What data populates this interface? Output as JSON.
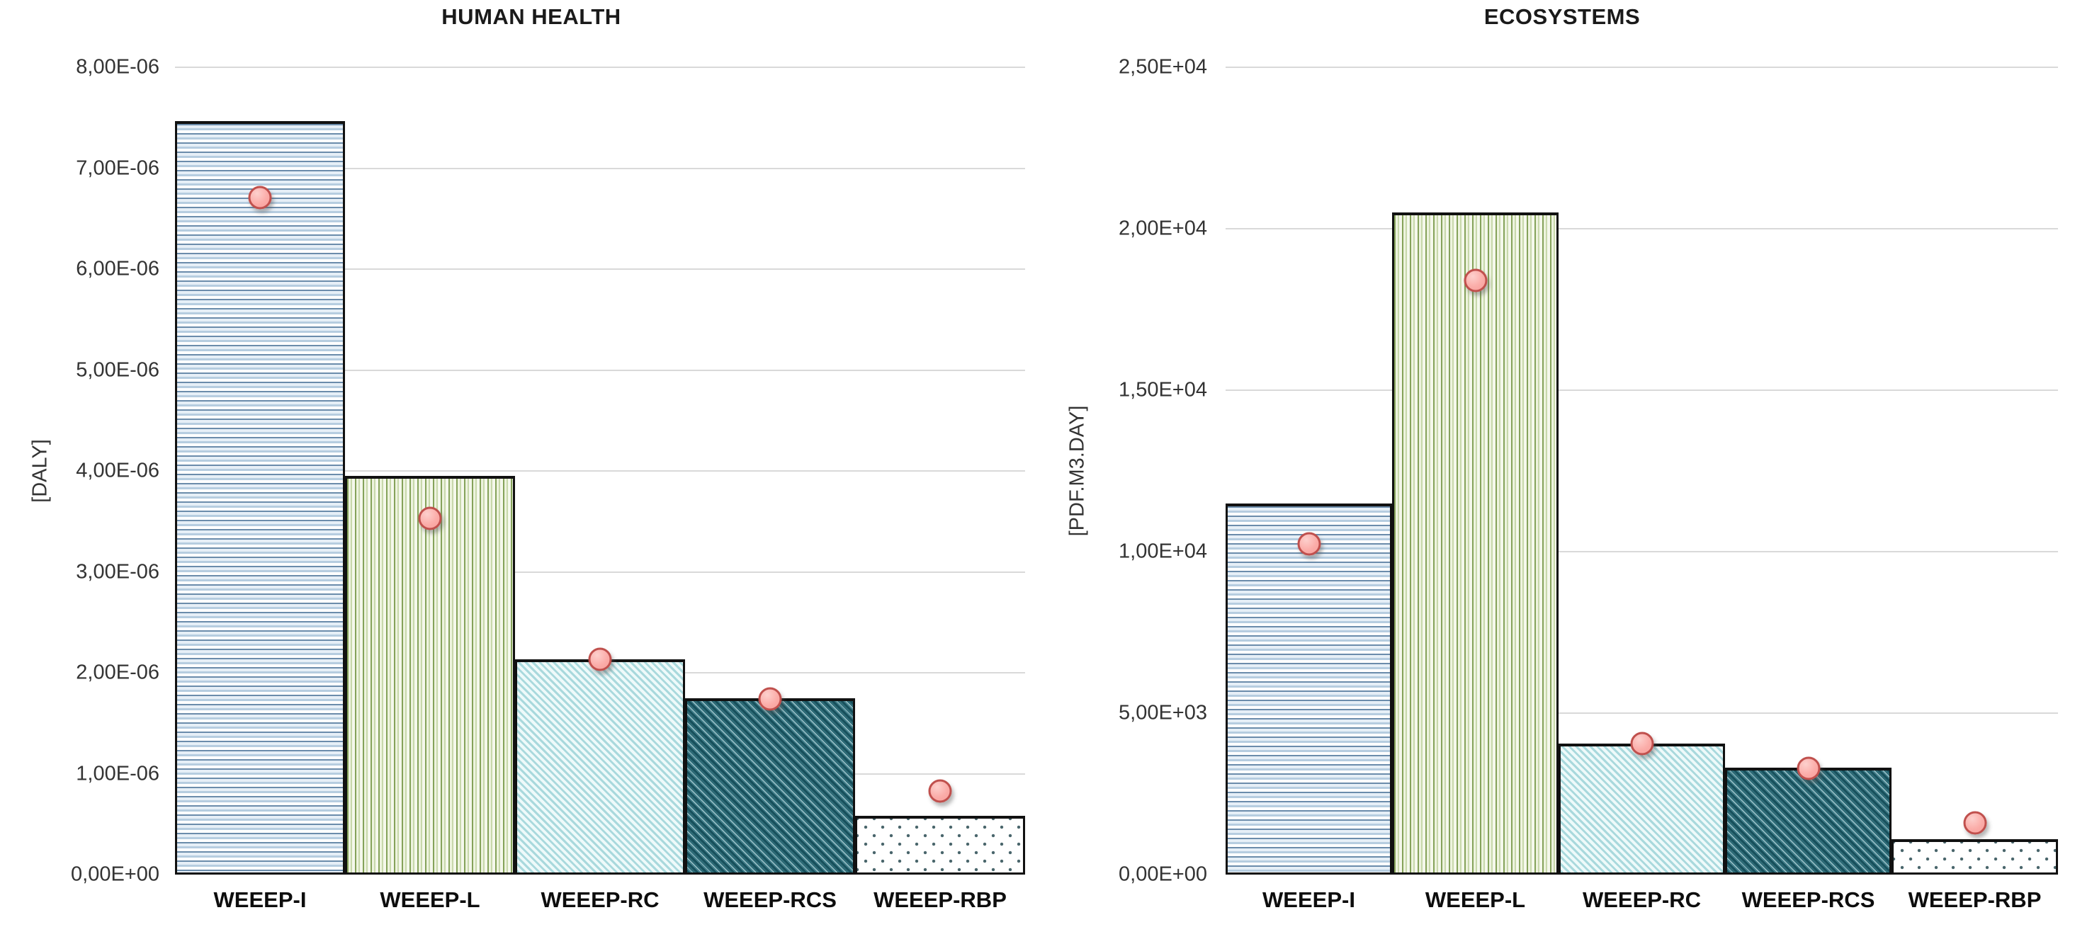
{
  "page": {
    "background": "#ffffff"
  },
  "colors": {
    "gridline": "#d9d9d9",
    "bar_border": "#111111",
    "marker_fill": "#fbada9",
    "marker_border": "#c0504d",
    "title_color": "#1a1a1a",
    "tick_label_color": "#333333",
    "category_label_color": "#0d0d0d"
  },
  "categories": [
    "WEEEP-I",
    "WEEEP-L",
    "WEEEP-RC",
    "WEEEP-RCS",
    "WEEEP-RBP"
  ],
  "bar_patterns": [
    "horizontal-stripes-blue",
    "vertical-stripes-green",
    "diagonal-hatch-light-teal",
    "diagonal-hatch-dark-teal",
    "dotted-white"
  ],
  "chart_data": [
    {
      "type": "bar",
      "title": "HUMAN HEALTH",
      "ylabel": "[DALY]",
      "categories": [
        "WEEEP-I",
        "WEEEP-L",
        "WEEEP-RC",
        "WEEEP-RCS",
        "WEEEP-RBP"
      ],
      "series": [
        {
          "name": "bars",
          "type": "bar",
          "values": [
            7.47e-06,
            3.95e-06,
            2.13e-06,
            1.75e-06,
            5.8e-07
          ]
        },
        {
          "name": "markers",
          "type": "scatter",
          "values": [
            6.71e-06,
            3.53e-06,
            2.13e-06,
            1.74e-06,
            8.3e-07
          ]
        }
      ],
      "ylim": [
        0,
        8e-06
      ],
      "grid": true,
      "legend_position": "none",
      "yticks": [
        {
          "value": 0,
          "label": "0,00E+00"
        },
        {
          "value": 1e-06,
          "label": "1,00E-06"
        },
        {
          "value": 2e-06,
          "label": "2,00E-06"
        },
        {
          "value": 3e-06,
          "label": "3,00E-06"
        },
        {
          "value": 4e-06,
          "label": "4,00E-06"
        },
        {
          "value": 5e-06,
          "label": "5,00E-06"
        },
        {
          "value": 6e-06,
          "label": "6,00E-06"
        },
        {
          "value": 7e-06,
          "label": "7,00E-06"
        },
        {
          "value": 8e-06,
          "label": "8,00E-06"
        }
      ]
    },
    {
      "type": "bar",
      "title": "ECOSYSTEMS",
      "ylabel": "[PDF.M3.DAY]",
      "categories": [
        "WEEEP-I",
        "WEEEP-L",
        "WEEEP-RC",
        "WEEEP-RCS",
        "WEEEP-RBP"
      ],
      "series": [
        {
          "name": "bars",
          "type": "bar",
          "values": [
            11500,
            20500,
            4060,
            3310,
            1100
          ]
        },
        {
          "name": "markers",
          "type": "scatter",
          "values": [
            10240,
            18400,
            4050,
            3300,
            1600
          ]
        }
      ],
      "ylim": [
        0,
        25000
      ],
      "grid": true,
      "legend_position": "none",
      "yticks": [
        {
          "value": 0,
          "label": "0,00E+00"
        },
        {
          "value": 5000,
          "label": "5,00E+03"
        },
        {
          "value": 10000,
          "label": "1,00E+04"
        },
        {
          "value": 15000,
          "label": "1,50E+04"
        },
        {
          "value": 20000,
          "label": "2,00E+04"
        },
        {
          "value": 25000,
          "label": "2,50E+04"
        }
      ]
    }
  ]
}
